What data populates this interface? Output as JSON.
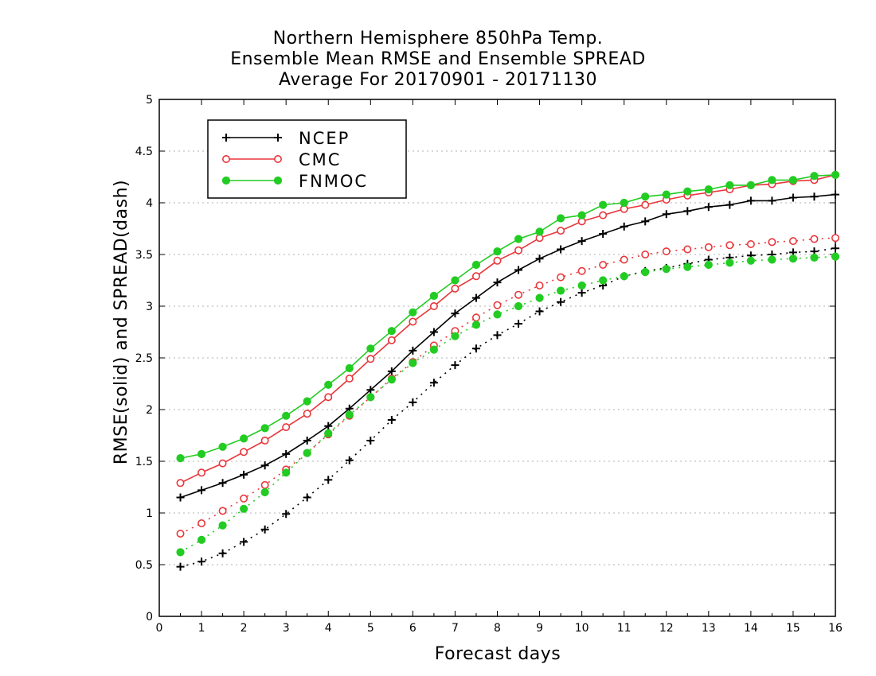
{
  "chart_data": {
    "type": "line",
    "title": [
      "Northern Hemisphere 850hPa Temp.",
      "Ensemble Mean RMSE and Ensemble SPREAD",
      "Average For 20170901 - 20171130"
    ],
    "xlabel": "Forecast days",
    "ylabel": "RMSE(solid) and SPREAD(dash)",
    "xlim": [
      0,
      16
    ],
    "ylim": [
      0,
      5
    ],
    "x_ticks": [
      "0",
      "1",
      "2",
      "3",
      "4",
      "5",
      "6",
      "7",
      "8",
      "9",
      "10",
      "11",
      "12",
      "13",
      "14",
      "15",
      "16"
    ],
    "y_ticks": [
      "0",
      "0.5",
      "1",
      "1.5",
      "2",
      "2.5",
      "3",
      "3.5",
      "4",
      "4.5",
      "5"
    ],
    "grid": true,
    "legend_position": "top-left",
    "x": [
      0.5,
      1,
      1.5,
      2,
      2.5,
      3,
      3.5,
      4,
      4.5,
      5,
      5.5,
      6,
      6.5,
      7,
      7.5,
      8,
      8.5,
      9,
      9.5,
      10,
      10.5,
      11,
      11.5,
      12,
      12.5,
      13,
      13.5,
      14,
      14.5,
      15,
      15.5,
      16
    ],
    "series": [
      {
        "name": "NCEP",
        "color": "#000000",
        "marker": "plus",
        "rmse": [
          1.15,
          1.22,
          1.29,
          1.37,
          1.46,
          1.57,
          1.7,
          1.84,
          2.01,
          2.19,
          2.37,
          2.57,
          2.75,
          2.93,
          3.08,
          3.23,
          3.35,
          3.46,
          3.55,
          3.63,
          3.7,
          3.77,
          3.82,
          3.89,
          3.92,
          3.96,
          3.98,
          4.02,
          4.02,
          4.05,
          4.06,
          4.08
        ],
        "spread": [
          0.48,
          0.53,
          0.61,
          0.72,
          0.84,
          0.99,
          1.15,
          1.32,
          1.51,
          1.7,
          1.9,
          2.07,
          2.26,
          2.43,
          2.59,
          2.72,
          2.83,
          2.95,
          3.04,
          3.13,
          3.2,
          3.29,
          3.34,
          3.37,
          3.41,
          3.45,
          3.47,
          3.49,
          3.5,
          3.52,
          3.53,
          3.56
        ]
      },
      {
        "name": "CMC",
        "color": "#e8363b",
        "marker": "open-circle",
        "rmse": [
          1.29,
          1.39,
          1.48,
          1.59,
          1.7,
          1.83,
          1.96,
          2.12,
          2.3,
          2.49,
          2.67,
          2.85,
          3.0,
          3.17,
          3.29,
          3.44,
          3.54,
          3.66,
          3.73,
          3.82,
          3.88,
          3.94,
          3.98,
          4.03,
          4.07,
          4.1,
          4.13,
          4.17,
          4.18,
          4.21,
          4.22,
          4.27
        ],
        "spread": [
          0.8,
          0.9,
          1.02,
          1.14,
          1.27,
          1.42,
          1.58,
          1.76,
          1.94,
          2.12,
          2.3,
          2.46,
          2.62,
          2.76,
          2.89,
          3.01,
          3.11,
          3.2,
          3.28,
          3.34,
          3.4,
          3.45,
          3.5,
          3.53,
          3.55,
          3.57,
          3.59,
          3.6,
          3.62,
          3.63,
          3.65,
          3.66
        ]
      },
      {
        "name": "FNMOC",
        "color": "#22cc22",
        "marker": "filled-circle",
        "rmse": [
          1.53,
          1.57,
          1.64,
          1.72,
          1.82,
          1.94,
          2.08,
          2.24,
          2.4,
          2.59,
          2.76,
          2.94,
          3.1,
          3.25,
          3.4,
          3.53,
          3.65,
          3.72,
          3.85,
          3.88,
          3.98,
          4.0,
          4.06,
          4.08,
          4.11,
          4.13,
          4.17,
          4.17,
          4.22,
          4.22,
          4.26,
          4.27
        ],
        "spread": [
          0.62,
          0.74,
          0.88,
          1.04,
          1.2,
          1.39,
          1.58,
          1.77,
          1.95,
          2.12,
          2.29,
          2.45,
          2.58,
          2.71,
          2.82,
          2.92,
          3.0,
          3.08,
          3.15,
          3.2,
          3.25,
          3.29,
          3.33,
          3.36,
          3.38,
          3.4,
          3.42,
          3.44,
          3.45,
          3.46,
          3.47,
          3.48
        ]
      }
    ]
  }
}
